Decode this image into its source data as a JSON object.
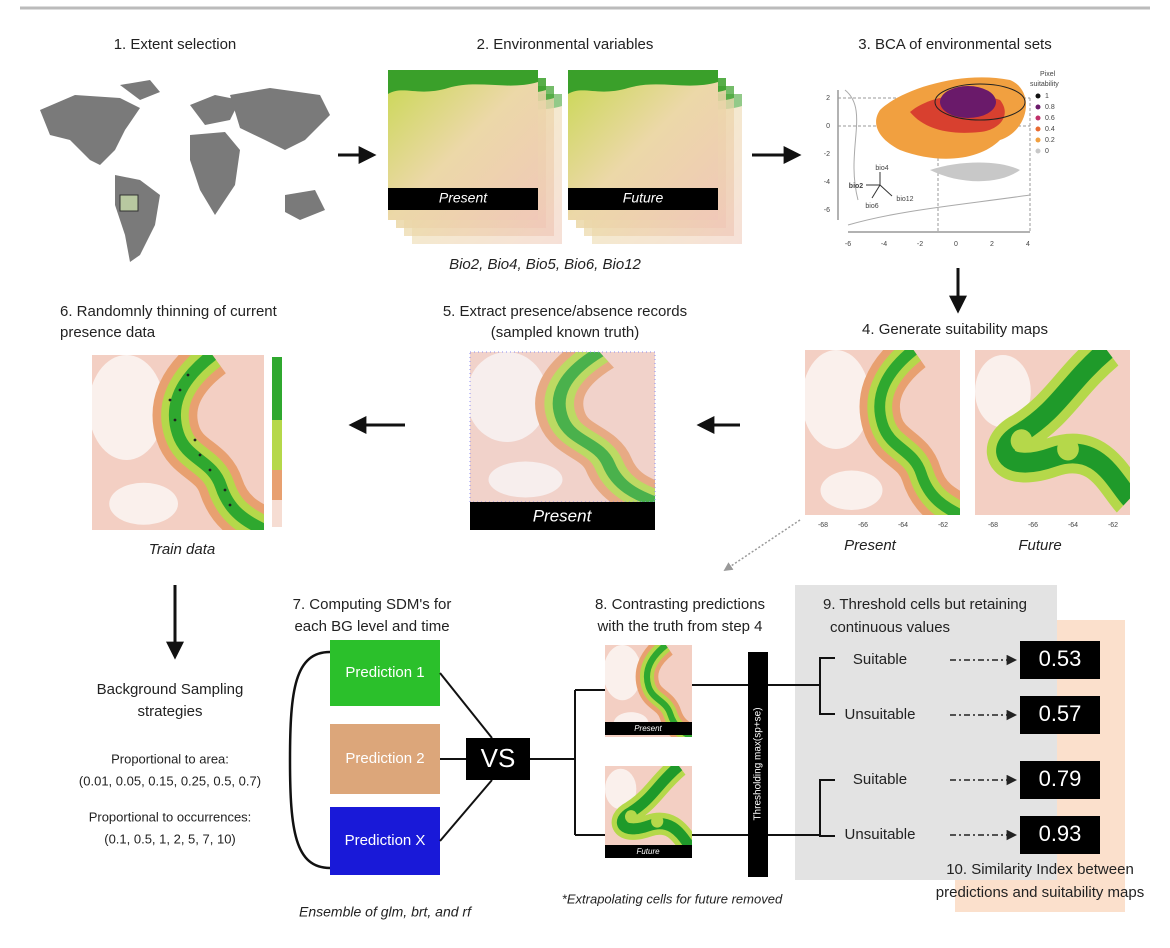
{
  "step1": {
    "title": "1. Extent selection"
  },
  "step2": {
    "title": "2. Environmental variables",
    "present": "Present",
    "future": "Future",
    "variables": "Bio2, Bio4, Bio5, Bio6, Bio12"
  },
  "step3": {
    "title": "3. BCA of environmental sets",
    "legend_title": [
      "Pixel",
      "suitability"
    ],
    "legend": [
      "1",
      "0.8",
      "0.6",
      "0.4",
      "0.2",
      "0"
    ],
    "yticks": [
      "2",
      "0",
      "-2",
      "-4",
      "-6"
    ],
    "xticks": [
      "-6",
      "-4",
      "-2",
      "0",
      "2",
      "4"
    ],
    "vectors": [
      "bio4",
      "bio2",
      "bio6",
      "bio12"
    ]
  },
  "step4": {
    "title": "4. Generate suitability maps",
    "present": "Present",
    "future": "Future",
    "xticks": [
      "-68",
      "-66",
      "-64",
      "-62"
    ]
  },
  "step5": {
    "title": [
      "5. Extract presence/absence records",
      "(sampled known truth)"
    ],
    "map_label": "Present"
  },
  "step6": {
    "title": [
      "6. Randomnly thinning of current",
      "presence data"
    ],
    "caption": "Train data"
  },
  "background": {
    "title": [
      "Background Sampling",
      "strategies"
    ],
    "area_label": "Proportional to area:",
    "area_values": "(0.01, 0.05, 0.15, 0.25, 0.5, 0.7)",
    "occ_label": "Proportional to occurrences:",
    "occ_values": "(0.1, 0.5, 1, 2, 5, 7, 10)"
  },
  "step7": {
    "title": [
      "7. Computing SDM's for",
      "each BG level and time"
    ],
    "predictions": [
      "Prediction 1",
      "Prediction 2",
      "Prediction X"
    ],
    "vs": "VS",
    "caption": "Ensemble of glm, brt, and rf"
  },
  "step8": {
    "title": [
      "8. Contrasting predictions",
      "with the truth from step 4"
    ],
    "present": "Present",
    "future": "Future",
    "threshold": "Thresholding max(sp+se)",
    "note": "*Extrapolating cells for future removed"
  },
  "step9": {
    "title": [
      "9. Threshold cells but retaining",
      "continuous values"
    ],
    "rows": [
      {
        "label": "Suitable",
        "value": "0.53"
      },
      {
        "label": "Unsuitable",
        "value": "0.57"
      },
      {
        "label": "Suitable",
        "value": "0.79"
      },
      {
        "label": "Unsuitable",
        "value": "0.93"
      }
    ]
  },
  "step10": {
    "title": [
      "10. Similarity Index between",
      "predictions and suitability maps"
    ]
  }
}
